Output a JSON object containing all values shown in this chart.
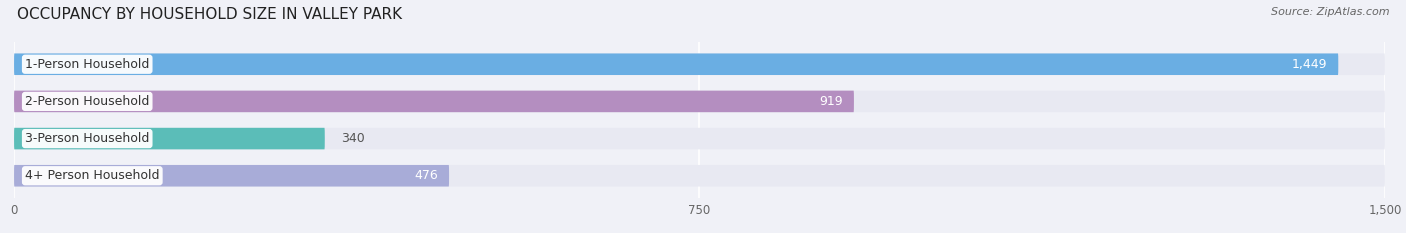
{
  "title": "OCCUPANCY BY HOUSEHOLD SIZE IN VALLEY PARK",
  "source": "Source: ZipAtlas.com",
  "categories": [
    "1-Person Household",
    "2-Person Household",
    "3-Person Household",
    "4+ Person Household"
  ],
  "values": [
    1449,
    919,
    340,
    476
  ],
  "bar_colors": [
    "#6aaee3",
    "#b48ec0",
    "#5bbdb8",
    "#a8acd8"
  ],
  "bar_bg_color": "#e2e4ee",
  "label_colors": [
    "#ffffff",
    "#ffffff",
    "#555555",
    "#555555"
  ],
  "xlim": [
    0,
    1500
  ],
  "xticks": [
    0,
    750,
    1500
  ],
  "xtick_labels": [
    "0",
    "750",
    "1,500"
  ],
  "value_labels": [
    "1,449",
    "919",
    "340",
    "476"
  ],
  "background_color": "#f0f1f7",
  "plot_bg_color": "#ffffff",
  "title_fontsize": 11,
  "source_fontsize": 8,
  "bar_label_fontsize": 9,
  "tick_fontsize": 8.5,
  "cat_fontsize": 9,
  "bar_height": 0.58,
  "bar_track_color": "#e8e9f2"
}
